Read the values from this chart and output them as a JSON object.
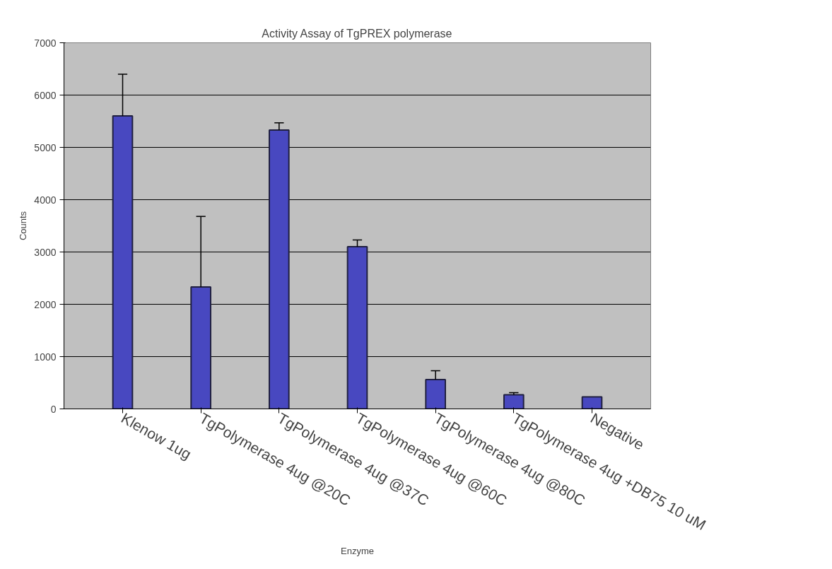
{
  "chart_data": {
    "type": "bar",
    "title": "Activity Assay of TgPREX polymerase",
    "xlabel": "Enzyme",
    "ylabel": "Counts",
    "categories": [
      "Klenow 1ug",
      "TgPolymerase 4ug @20C",
      "TgPolymerase 4ug @37C",
      "TgPolymerase 4ug @60C",
      "TgPolymerase 4ug @80C",
      "TgPolymerase 4ug +DB75 10 uM",
      "Negative"
    ],
    "values": [
      5600,
      2330,
      5330,
      3100,
      560,
      270,
      230
    ],
    "errors": [
      [
        5600,
        6400
      ],
      [
        2330,
        3680
      ],
      [
        5330,
        5470
      ],
      [
        3100,
        3230
      ],
      [
        560,
        730
      ],
      [
        270,
        310
      ],
      null
    ],
    "color": "#4848c0",
    "ylim": [
      0,
      7000
    ],
    "yticks": [
      0,
      1000,
      2000,
      3000,
      4000,
      5000,
      6000,
      7000
    ],
    "grid": "y"
  }
}
